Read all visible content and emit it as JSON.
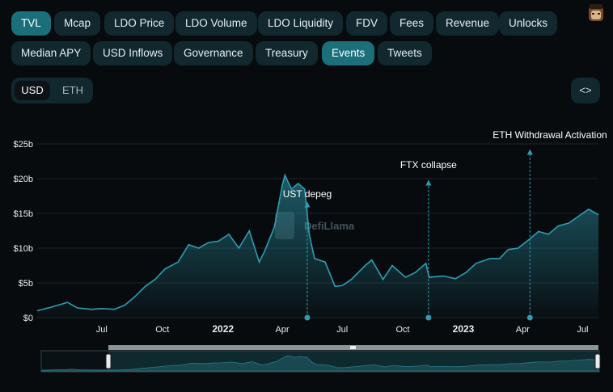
{
  "tabs_row1": [
    {
      "label": "TVL",
      "active": true
    },
    {
      "label": "Mcap",
      "active": false
    },
    {
      "label": "LDO Price",
      "active": false
    },
    {
      "label": "LDO Volume",
      "active": false
    },
    {
      "label": "LDO Liquidity",
      "active": false
    },
    {
      "label": "FDV",
      "active": false
    },
    {
      "label": "Fees",
      "active": false
    },
    {
      "label": "Revenue",
      "active": false
    },
    {
      "label": "Unlocks",
      "active": false
    }
  ],
  "tabs_row2": [
    {
      "label": "Median APY",
      "active": false
    },
    {
      "label": "USD Inflows",
      "active": false
    },
    {
      "label": "Governance",
      "active": false
    },
    {
      "label": "Treasury",
      "active": false
    },
    {
      "label": "Events",
      "active": true
    },
    {
      "label": "Tweets",
      "active": false
    }
  ],
  "currency": {
    "selected": "USD",
    "other": "ETH"
  },
  "embed_icon": "<>",
  "colors": {
    "accent": "#1a6f7a",
    "line": "#2f9db1",
    "background": "#070b0e"
  },
  "watermark": "DefiLlama",
  "chart_data": {
    "type": "area",
    "y_ticks": [
      "$0",
      "$5b",
      "$10b",
      "$15b",
      "$20b",
      "$25b"
    ],
    "ylim": [
      0,
      25
    ],
    "y_unit": "USD billions",
    "x_ticks": [
      {
        "label": "Jul",
        "date": "2021-07-01",
        "bold": false
      },
      {
        "label": "Oct",
        "date": "2021-10-01",
        "bold": false
      },
      {
        "label": "2022",
        "date": "2022-01-01",
        "bold": true
      },
      {
        "label": "Apr",
        "date": "2022-04-01",
        "bold": false
      },
      {
        "label": "Jul",
        "date": "2022-07-01",
        "bold": false
      },
      {
        "label": "Oct",
        "date": "2022-10-01",
        "bold": false
      },
      {
        "label": "2023",
        "date": "2023-01-01",
        "bold": true
      },
      {
        "label": "Apr",
        "date": "2023-04-01",
        "bold": false
      },
      {
        "label": "Jul",
        "date": "2023-07-01",
        "bold": false
      }
    ],
    "xlim": [
      "2021-03-25",
      "2023-07-25"
    ],
    "grid": true,
    "series": [
      {
        "values": [
          [
            "2021-03-25",
            1.0
          ],
          [
            "2021-04-15",
            1.5
          ],
          [
            "2021-05-10",
            2.2
          ],
          [
            "2021-05-25",
            1.4
          ],
          [
            "2021-06-15",
            1.2
          ],
          [
            "2021-07-01",
            1.3
          ],
          [
            "2021-07-20",
            1.2
          ],
          [
            "2021-08-05",
            1.8
          ],
          [
            "2021-08-20",
            3.0
          ],
          [
            "2021-09-05",
            4.5
          ],
          [
            "2021-09-20",
            5.5
          ],
          [
            "2021-10-05",
            7.0
          ],
          [
            "2021-10-25",
            8.0
          ],
          [
            "2021-11-10",
            10.5
          ],
          [
            "2021-11-25",
            10.0
          ],
          [
            "2021-12-10",
            10.8
          ],
          [
            "2021-12-25",
            11.0
          ],
          [
            "2022-01-10",
            12.0
          ],
          [
            "2022-01-25",
            10.0
          ],
          [
            "2022-02-10",
            12.5
          ],
          [
            "2022-02-25",
            8.0
          ],
          [
            "2022-03-05",
            9.5
          ],
          [
            "2022-03-20",
            13.0
          ],
          [
            "2022-04-01",
            19.0
          ],
          [
            "2022-04-05",
            20.5
          ],
          [
            "2022-04-15",
            18.5
          ],
          [
            "2022-04-25",
            19.3
          ],
          [
            "2022-05-05",
            18.5
          ],
          [
            "2022-05-12",
            12.0
          ],
          [
            "2022-05-20",
            8.5
          ],
          [
            "2022-06-05",
            8.0
          ],
          [
            "2022-06-20",
            4.5
          ],
          [
            "2022-07-01",
            4.6
          ],
          [
            "2022-07-15",
            5.5
          ],
          [
            "2022-08-05",
            7.5
          ],
          [
            "2022-08-15",
            8.3
          ],
          [
            "2022-09-01",
            5.5
          ],
          [
            "2022-09-15",
            7.5
          ],
          [
            "2022-10-05",
            5.8
          ],
          [
            "2022-10-20",
            6.5
          ],
          [
            "2022-11-05",
            7.8
          ],
          [
            "2022-11-10",
            5.8
          ],
          [
            "2022-12-01",
            6.0
          ],
          [
            "2022-12-20",
            5.6
          ],
          [
            "2023-01-05",
            6.5
          ],
          [
            "2023-01-20",
            7.8
          ],
          [
            "2023-02-10",
            8.5
          ],
          [
            "2023-02-25",
            8.5
          ],
          [
            "2023-03-10",
            9.8
          ],
          [
            "2023-03-25",
            10.0
          ],
          [
            "2023-04-10",
            11.2
          ],
          [
            "2023-04-25",
            12.4
          ],
          [
            "2023-05-10",
            12.0
          ],
          [
            "2023-05-25",
            13.2
          ],
          [
            "2023-06-10",
            13.6
          ],
          [
            "2023-06-25",
            14.6
          ],
          [
            "2023-07-10",
            15.6
          ],
          [
            "2023-07-25",
            14.8
          ]
        ]
      }
    ],
    "events": [
      {
        "label": "UST depeg",
        "date": "2022-05-09"
      },
      {
        "label": "FTX collapse",
        "date": "2022-11-09"
      },
      {
        "label": "ETH Withdrawal Activation",
        "date": "2023-04-12"
      }
    ]
  }
}
